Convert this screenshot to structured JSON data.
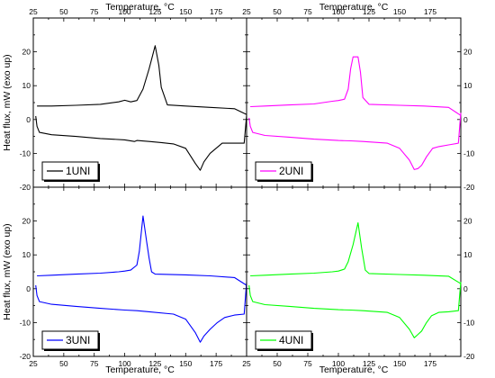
{
  "chart_data": {
    "type": "line",
    "xlabel": "Temperature, °C",
    "ylabel": "Heat flux, mW (exo up)",
    "x_ticks": [
      25,
      50,
      75,
      100,
      125,
      150,
      175
    ],
    "y_ticks": [
      -20,
      -10,
      0,
      10,
      20
    ],
    "panels": [
      {
        "legend": "1UNI",
        "color": "#000000",
        "xlim": [
          25,
          200
        ],
        "ylim": [
          -20,
          30
        ],
        "series": [
          {
            "name": "1UNI",
            "x": [
              28,
              40,
              60,
              80,
              95,
              100,
              105,
              110,
              115,
              120,
              125,
              128,
              130,
              135,
              150,
              170,
              190,
              200
            ],
            "y": [
              4,
              4,
              4.2,
              4.5,
              5.2,
              5.7,
              5.2,
              5.6,
              9,
              15,
              21.8,
              16,
              9.5,
              4.3,
              4,
              3.6,
              3.2,
              1.5
            ]
          },
          {
            "name": "1UNI",
            "x": [
              200,
              198,
              190,
              180,
              170,
              165,
              162,
              158,
              150,
              140,
              130,
              120,
              110,
              108,
              100,
              80,
              60,
              40,
              30,
              28,
              27
            ],
            "y": [
              1.2,
              -7,
              -7,
              -7,
              -10,
              -12.5,
              -15,
              -13,
              -8.5,
              -7.2,
              -6.8,
              -6.5,
              -6.2,
              -6.5,
              -6,
              -5.6,
              -5,
              -4.5,
              -3.8,
              -2,
              1
            ]
          }
        ]
      },
      {
        "legend": "2UNI",
        "color": "#ff00ff",
        "xlim": [
          25,
          200
        ],
        "ylim": [
          -20,
          30
        ],
        "series": [
          {
            "name": "2UNI",
            "x": [
              28,
              40,
              60,
              80,
              95,
              100,
              105,
              108,
              110,
              112,
              116,
              118,
              120,
              125,
              150,
              170,
              190,
              200
            ],
            "y": [
              3.8,
              4,
              4.3,
              4.6,
              5.4,
              5.6,
              6,
              9,
              15,
              18.5,
              18.5,
              14,
              6.5,
              4.5,
              4.2,
              4,
              3.6,
              1.2
            ]
          },
          {
            "name": "2UNI",
            "x": [
              200,
              198,
              190,
              182,
              177,
              172,
              168,
              165,
              162,
              158,
              150,
              140,
              120,
              110,
              100,
              80,
              60,
              40,
              30,
              28,
              27
            ],
            "y": [
              2,
              -7,
              -7.5,
              -8,
              -8.5,
              -11,
              -13.5,
              -14.5,
              -14.8,
              -12,
              -8.5,
              -7,
              -6.5,
              -6.3,
              -6.2,
              -5.8,
              -5.2,
              -4.7,
              -3.8,
              -2,
              0.5
            ]
          }
        ]
      },
      {
        "legend": "3UNI",
        "color": "#0000ff",
        "xlim": [
          25,
          200
        ],
        "ylim": [
          -20,
          30
        ],
        "series": [
          {
            "name": "3UNI",
            "x": [
              28,
              40,
              60,
              80,
              95,
              100,
              105,
              110,
              112,
              115,
              118,
              120,
              122,
              125,
              150,
              170,
              190,
              200
            ],
            "y": [
              3.8,
              4,
              4.3,
              4.6,
              5,
              5.2,
              5.5,
              7,
              11,
              21.5,
              14,
              9,
              5,
              4.3,
              4.1,
              3.8,
              3.3,
              1
            ]
          },
          {
            "name": "3UNI",
            "x": [
              200,
              198,
              190,
              182,
              176,
              170,
              165,
              162,
              158,
              150,
              140,
              120,
              110,
              100,
              80,
              60,
              40,
              30,
              28,
              27
            ],
            "y": [
              2,
              -7.5,
              -7.8,
              -8.5,
              -10,
              -12,
              -14,
              -15.8,
              -13,
              -9,
              -7.5,
              -6.8,
              -6.5,
              -6.3,
              -5.8,
              -5.2,
              -4.6,
              -3.8,
              -2,
              1
            ]
          }
        ]
      },
      {
        "legend": "4UNI",
        "color": "#00ff00",
        "xlim": [
          25,
          200
        ],
        "ylim": [
          -20,
          30
        ],
        "series": [
          {
            "name": "4UNI",
            "x": [
              28,
              40,
              60,
              80,
              95,
              100,
              105,
              108,
              112,
              116,
              119,
              122,
              125,
              150,
              170,
              190,
              200
            ],
            "y": [
              3.8,
              4,
              4.3,
              4.6,
              5,
              5.2,
              5.8,
              8,
              13,
              19.5,
              12,
              5.5,
              4.5,
              4.2,
              4,
              3.7,
              1.5
            ]
          },
          {
            "name": "4UNI",
            "x": [
              200,
              198,
              190,
              182,
              176,
              172,
              168,
              165,
              162,
              158,
              150,
              140,
              120,
              110,
              100,
              80,
              60,
              40,
              30,
              28,
              27
            ],
            "y": [
              2,
              -6.5,
              -6.8,
              -7,
              -8,
              -10,
              -12.5,
              -13.5,
              -14.5,
              -12,
              -8.5,
              -7,
              -6.5,
              -6.3,
              -6.2,
              -5.8,
              -5.2,
              -4.7,
              -3.8,
              -2,
              1
            ]
          }
        ]
      }
    ]
  }
}
